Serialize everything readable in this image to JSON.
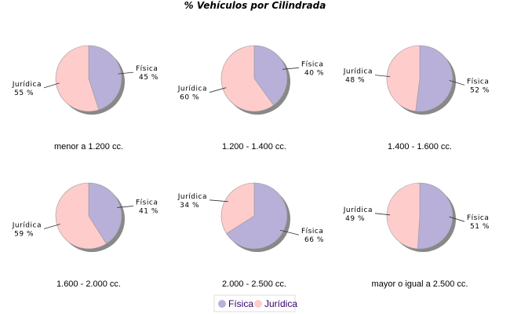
{
  "chart_data": {
    "type": "pie",
    "title": "% Vehículos por Cilindrada",
    "legend": {
      "placement": "bottom",
      "entries": [
        "Física",
        "Jurídica"
      ]
    },
    "colors": {
      "Física": "#b8b0d8",
      "Jurídica": "#ffcccc",
      "shadow": "#888888",
      "legend_text": "#330066"
    },
    "pies": [
      {
        "category": "menor a 1.200 cc.",
        "slices": [
          {
            "name": "Física",
            "value": 45,
            "label": "45 %"
          },
          {
            "name": "Jurídica",
            "value": 55,
            "label": "55 %"
          }
        ]
      },
      {
        "category": "1.200 - 1.400 cc.",
        "slices": [
          {
            "name": "Física",
            "value": 40,
            "label": "40 %"
          },
          {
            "name": "Jurídica",
            "value": 60,
            "label": "60 %"
          }
        ]
      },
      {
        "category": "1.400 - 1.600 cc.",
        "slices": [
          {
            "name": "Física",
            "value": 52,
            "label": "52 %"
          },
          {
            "name": "Jurídica",
            "value": 48,
            "label": "48 %"
          }
        ]
      },
      {
        "category": "1.600 - 2.000 cc.",
        "slices": [
          {
            "name": "Física",
            "value": 41,
            "label": "41 %"
          },
          {
            "name": "Jurídica",
            "value": 59,
            "label": "59 %"
          }
        ]
      },
      {
        "category": "2.000 - 2.500 cc.",
        "slices": [
          {
            "name": "Física",
            "value": 66,
            "label": "66 %"
          },
          {
            "name": "Jurídica",
            "value": 34,
            "label": "34 %"
          }
        ]
      },
      {
        "category": "mayor o igual a 2.500 cc.",
        "slices": [
          {
            "name": "Física",
            "value": 51,
            "label": "51 %"
          },
          {
            "name": "Jurídica",
            "value": 49,
            "label": "49 %"
          }
        ]
      }
    ]
  }
}
